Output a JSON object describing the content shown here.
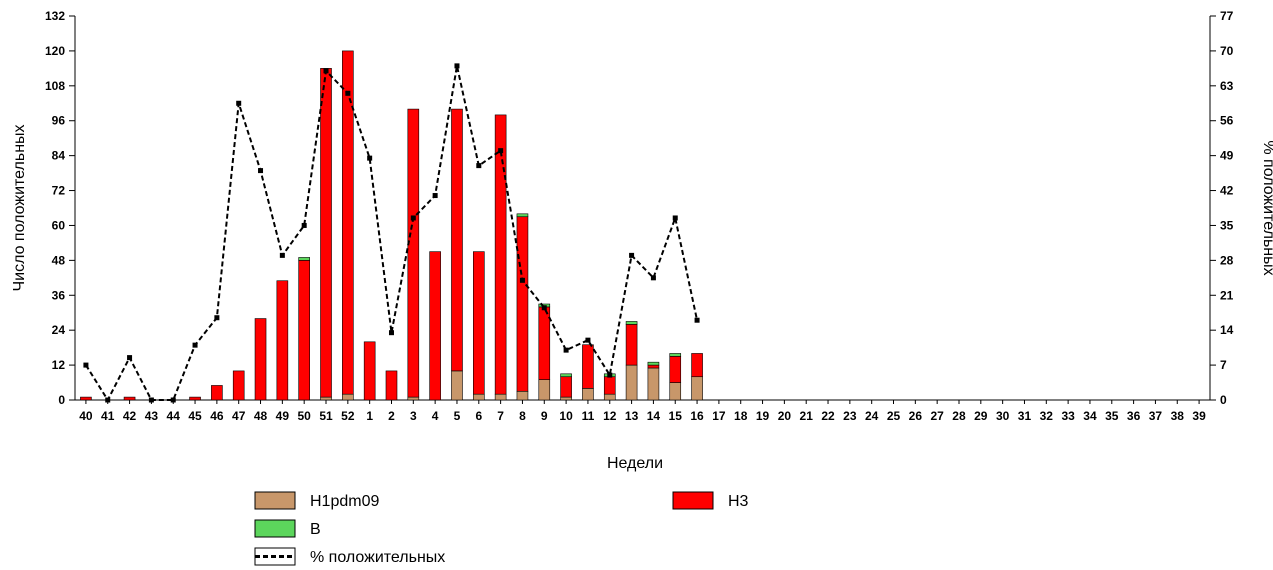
{
  "chart_data": {
    "type": "bar",
    "stacked": true,
    "xlabel": "Недели",
    "ylabel": "Число положительных",
    "y2label": "% положительных",
    "ylim": [
      0,
      132
    ],
    "y2lim": [
      0,
      77
    ],
    "yticks": [
      0,
      12,
      24,
      36,
      48,
      60,
      72,
      84,
      96,
      108,
      120,
      132
    ],
    "y2ticks": [
      0,
      7,
      14,
      21,
      28,
      35,
      42,
      49,
      56,
      63,
      70,
      77
    ],
    "categories": [
      "40",
      "41",
      "42",
      "43",
      "44",
      "45",
      "46",
      "47",
      "48",
      "49",
      "50",
      "51",
      "52",
      "1",
      "2",
      "3",
      "4",
      "5",
      "6",
      "7",
      "8",
      "9",
      "10",
      "11",
      "12",
      "13",
      "14",
      "15",
      "16",
      "17",
      "18",
      "19",
      "20",
      "21",
      "22",
      "23",
      "24",
      "25",
      "26",
      "27",
      "28",
      "29",
      "30",
      "31",
      "32",
      "33",
      "34",
      "35",
      "36",
      "37",
      "38",
      "39"
    ],
    "series": [
      {
        "name": "H1pdm09",
        "color": "#c8976a",
        "values": [
          0,
          0,
          0,
          0,
          0,
          0,
          0,
          0,
          0,
          0,
          0,
          1,
          2,
          0,
          0,
          1,
          0,
          10,
          2,
          2,
          3,
          7,
          1,
          4,
          2,
          12,
          11,
          6,
          8,
          0,
          0,
          0,
          0,
          0,
          0,
          0,
          0,
          0,
          0,
          0,
          0,
          0,
          0,
          0,
          0,
          0,
          0,
          0,
          0,
          0,
          0,
          0
        ]
      },
      {
        "name": "H3",
        "color": "#ff0000",
        "values": [
          1,
          0,
          1,
          0,
          0,
          1,
          5,
          10,
          28,
          41,
          48,
          113,
          118,
          20,
          10,
          99,
          51,
          90,
          49,
          96,
          60,
          25,
          7,
          15,
          6,
          14,
          1,
          9,
          8,
          0,
          0,
          0,
          0,
          0,
          0,
          0,
          0,
          0,
          0,
          0,
          0,
          0,
          0,
          0,
          0,
          0,
          0,
          0,
          0,
          0,
          0,
          0
        ]
      },
      {
        "name": "B",
        "color": "#5cd65c",
        "values": [
          0,
          0,
          0,
          0,
          0,
          0,
          0,
          0,
          0,
          0,
          1,
          0,
          0,
          0,
          0,
          0,
          0,
          0,
          0,
          0,
          1,
          1,
          1,
          0,
          1,
          1,
          1,
          1,
          0,
          0,
          0,
          0,
          0,
          0,
          0,
          0,
          0,
          0,
          0,
          0,
          0,
          0,
          0,
          0,
          0,
          0,
          0,
          0,
          0,
          0,
          0,
          0
        ]
      }
    ],
    "line": {
      "name": "% положительных",
      "axis": "right",
      "values": [
        7,
        0,
        8.5,
        0,
        0,
        11,
        16.5,
        59.5,
        46,
        29,
        35,
        66,
        61.5,
        48.5,
        13.5,
        36.5,
        41,
        67,
        47,
        50,
        24,
        18.5,
        10,
        12,
        5,
        29,
        24.5,
        36.5,
        16
      ]
    },
    "legend": {
      "position": "bottom"
    }
  }
}
